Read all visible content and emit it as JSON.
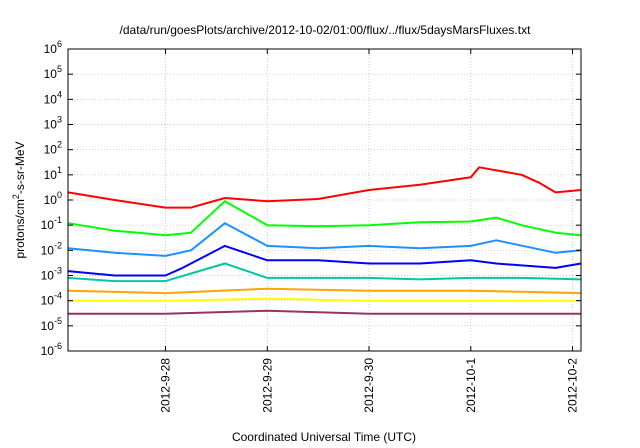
{
  "chart_data": {
    "type": "line",
    "title": "/data/run/goesPlots/archive/2012-10-02/01:00/flux/../flux/5daysMarsFluxes.txt",
    "xlabel": "Coordinated Universal Time (UTC)",
    "ylabel": {
      "pre": "protons/cm",
      "sup": "2",
      "post": "-s-sr-MeV"
    },
    "y_scale": "log",
    "ylim": [
      1e-06,
      1000000.0
    ],
    "y_ticks": [
      {
        "value": 1e-06,
        "base": "10",
        "exp": "-6"
      },
      {
        "value": 1e-05,
        "base": "10",
        "exp": "-5"
      },
      {
        "value": 0.0001,
        "base": "10",
        "exp": "-4"
      },
      {
        "value": 0.001,
        "base": "10",
        "exp": "-3"
      },
      {
        "value": 0.01,
        "base": "10",
        "exp": "-2"
      },
      {
        "value": 0.1,
        "base": "10",
        "exp": "-1"
      },
      {
        "value": 1,
        "base": "10",
        "exp": "0"
      },
      {
        "value": 10,
        "base": "10",
        "exp": "1"
      },
      {
        "value": 100,
        "base": "10",
        "exp": "2"
      },
      {
        "value": 1000,
        "base": "10",
        "exp": "3"
      },
      {
        "value": 10000,
        "base": "10",
        "exp": "4"
      },
      {
        "value": 100000,
        "base": "10",
        "exp": "5"
      },
      {
        "value": 1000000,
        "base": "10",
        "exp": "6"
      }
    ],
    "xlim": [
      "2012-09-27 01:00",
      "2012-10-02 02:00"
    ],
    "x_ticks": [
      "2012-9-28",
      "2012-9-29",
      "2012-9-30",
      "2012-10-1",
      "2012-10-2"
    ],
    "grid": true,
    "legend": "none",
    "series": [
      {
        "color": "#ff0000",
        "points": [
          [
            "2012-09-27 01:00",
            2.0
          ],
          [
            "2012-09-27 12:00",
            1.0
          ],
          [
            "2012-09-28 00:00",
            0.5
          ],
          [
            "2012-09-28 06:00",
            0.5
          ],
          [
            "2012-09-28 14:00",
            1.2
          ],
          [
            "2012-09-29 00:00",
            0.9
          ],
          [
            "2012-09-29 12:00",
            1.1
          ],
          [
            "2012-09-30 00:00",
            2.5
          ],
          [
            "2012-09-30 12:00",
            4.0
          ],
          [
            "2012-10-01 00:00",
            8.0
          ],
          [
            "2012-10-01 02:00",
            20.0
          ],
          [
            "2012-10-01 12:00",
            10.0
          ],
          [
            "2012-10-01 16:00",
            5.0
          ],
          [
            "2012-10-01 20:00",
            2.0
          ],
          [
            "2012-10-02 02:00",
            2.5
          ]
        ]
      },
      {
        "color": "#00ff00",
        "points": [
          [
            "2012-09-27 01:00",
            0.12
          ],
          [
            "2012-09-27 12:00",
            0.06
          ],
          [
            "2012-09-28 00:00",
            0.04
          ],
          [
            "2012-09-28 06:00",
            0.05
          ],
          [
            "2012-09-28 14:00",
            0.9
          ],
          [
            "2012-09-29 00:00",
            0.1
          ],
          [
            "2012-09-29 12:00",
            0.09
          ],
          [
            "2012-09-30 00:00",
            0.1
          ],
          [
            "2012-09-30 12:00",
            0.13
          ],
          [
            "2012-10-01 00:00",
            0.14
          ],
          [
            "2012-10-01 06:00",
            0.2
          ],
          [
            "2012-10-01 12:00",
            0.1
          ],
          [
            "2012-10-01 20:00",
            0.05
          ],
          [
            "2012-10-02 02:00",
            0.04
          ]
        ]
      },
      {
        "color": "#1e90ff",
        "points": [
          [
            "2012-09-27 01:00",
            0.012
          ],
          [
            "2012-09-27 12:00",
            0.008
          ],
          [
            "2012-09-28 00:00",
            0.006
          ],
          [
            "2012-09-28 06:00",
            0.01
          ],
          [
            "2012-09-28 14:00",
            0.12
          ],
          [
            "2012-09-29 00:00",
            0.015
          ],
          [
            "2012-09-29 12:00",
            0.012
          ],
          [
            "2012-09-30 00:00",
            0.015
          ],
          [
            "2012-09-30 12:00",
            0.012
          ],
          [
            "2012-10-01 00:00",
            0.015
          ],
          [
            "2012-10-01 06:00",
            0.025
          ],
          [
            "2012-10-01 20:00",
            0.008
          ],
          [
            "2012-10-02 02:00",
            0.01
          ]
        ]
      },
      {
        "color": "#0000ff",
        "points": [
          [
            "2012-09-27 01:00",
            0.0015
          ],
          [
            "2012-09-27 12:00",
            0.001
          ],
          [
            "2012-09-28 00:00",
            0.001
          ],
          [
            "2012-09-28 04:00",
            0.002
          ],
          [
            "2012-09-28 14:00",
            0.015
          ],
          [
            "2012-09-29 00:00",
            0.004
          ],
          [
            "2012-09-29 12:00",
            0.004
          ],
          [
            "2012-09-30 00:00",
            0.003
          ],
          [
            "2012-09-30 12:00",
            0.003
          ],
          [
            "2012-10-01 00:00",
            0.004
          ],
          [
            "2012-10-01 06:00",
            0.003
          ],
          [
            "2012-10-01 20:00",
            0.002
          ],
          [
            "2012-10-02 02:00",
            0.003
          ]
        ]
      },
      {
        "color": "#00c8a0",
        "points": [
          [
            "2012-09-27 01:00",
            0.0008
          ],
          [
            "2012-09-27 12:00",
            0.0006
          ],
          [
            "2012-09-28 00:00",
            0.0006
          ],
          [
            "2012-09-28 06:00",
            0.0012
          ],
          [
            "2012-09-28 14:00",
            0.003
          ],
          [
            "2012-09-29 00:00",
            0.0008
          ],
          [
            "2012-09-29 12:00",
            0.0008
          ],
          [
            "2012-09-30 00:00",
            0.0008
          ],
          [
            "2012-09-30 12:00",
            0.0007
          ],
          [
            "2012-10-01 00:00",
            0.0008
          ],
          [
            "2012-10-01 12:00",
            0.0008
          ],
          [
            "2012-10-02 02:00",
            0.0007
          ]
        ]
      },
      {
        "color": "#ffa500",
        "points": [
          [
            "2012-09-27 01:00",
            0.00025
          ],
          [
            "2012-09-28 00:00",
            0.0002
          ],
          [
            "2012-09-29 00:00",
            0.0003
          ],
          [
            "2012-09-30 00:00",
            0.00025
          ],
          [
            "2012-10-01 00:00",
            0.00025
          ],
          [
            "2012-10-02 02:00",
            0.0002
          ]
        ]
      },
      {
        "color": "#ffff00",
        "points": [
          [
            "2012-09-27 01:00",
            0.0001
          ],
          [
            "2012-09-28 00:00",
            0.0001
          ],
          [
            "2012-09-29 00:00",
            0.00012
          ],
          [
            "2012-09-30 00:00",
            0.0001
          ],
          [
            "2012-10-01 00:00",
            0.0001
          ],
          [
            "2012-10-02 02:00",
            0.0001
          ]
        ]
      },
      {
        "color": "#993366",
        "points": [
          [
            "2012-09-27 01:00",
            3e-05
          ],
          [
            "2012-09-28 00:00",
            3e-05
          ],
          [
            "2012-09-29 00:00",
            4e-05
          ],
          [
            "2012-09-30 00:00",
            3e-05
          ],
          [
            "2012-10-01 00:00",
            3e-05
          ],
          [
            "2012-10-02 02:00",
            3e-05
          ]
        ]
      }
    ]
  }
}
